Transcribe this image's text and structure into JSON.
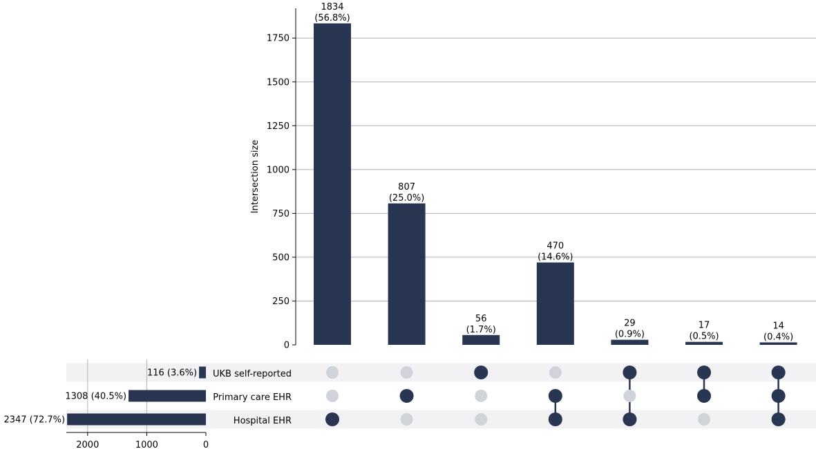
{
  "chart_data": {
    "type": "bar",
    "subtype": "upset",
    "colors": {
      "bar": "#283651",
      "dot_active": "#283651",
      "dot_inactive": "#d0d3da",
      "stripe": "#f2f2f5",
      "grid": "#b0b0b0"
    },
    "intersections": {
      "ylabel": "Intersection size",
      "ylim": [
        0,
        1920
      ],
      "yticks": [
        0,
        250,
        500,
        750,
        1000,
        1250,
        1500,
        1750
      ],
      "grid": true,
      "values": [
        1834,
        807,
        56,
        470,
        29,
        17,
        14
      ],
      "labels": [
        [
          "1834",
          "(56.8%)"
        ],
        [
          "807",
          "(25.0%)"
        ],
        [
          "56",
          "(1.7%)"
        ],
        [
          "470",
          "(14.6%)"
        ],
        [
          "29",
          "(0.9%)"
        ],
        [
          "17",
          "(0.5%)"
        ],
        [
          "14",
          "(0.4%)"
        ]
      ],
      "membership": [
        [
          false,
          false,
          true
        ],
        [
          false,
          true,
          false
        ],
        [
          true,
          false,
          false
        ],
        [
          false,
          true,
          true
        ],
        [
          true,
          false,
          true
        ],
        [
          true,
          true,
          false
        ],
        [
          true,
          true,
          true
        ]
      ]
    },
    "sets": {
      "names": [
        "UKB self-reported",
        "Primary care EHR",
        "Hospital EHR"
      ],
      "values": [
        116,
        1308,
        2347
      ],
      "labels": [
        "116 (3.6%)",
        "1308 (40.5%)",
        "2347 (72.7%)"
      ],
      "xticks": [
        2000,
        1000,
        0
      ],
      "xlim": [
        2360,
        0
      ]
    }
  }
}
